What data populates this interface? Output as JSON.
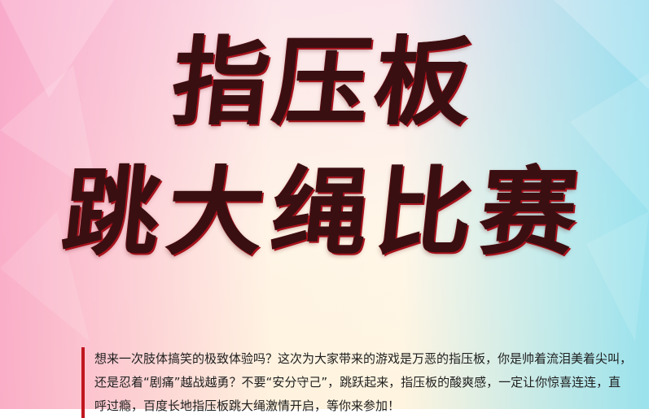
{
  "poster": {
    "title_line1": "指压板",
    "title_line2": "跳大绳比赛",
    "intro": "想来一次肢体搞笑的极致体验吗？这次为大家带来的游戏是万恶的指压板，你是帅着流泪美着尖叫，还是忍着“剧痛”越战越勇？不要“安分守己”，跳跃起来，指压板的酸爽感，一定让你惊喜连连，直呼过瘾，百度长地指压板跳大绳激情开启，等你来参加！"
  },
  "colors": {
    "accent": "#c0161f",
    "title_dark": "#3a0f12",
    "title_red": "#a8121c",
    "pink": "#f896be",
    "cyan": "#78dcf0"
  }
}
